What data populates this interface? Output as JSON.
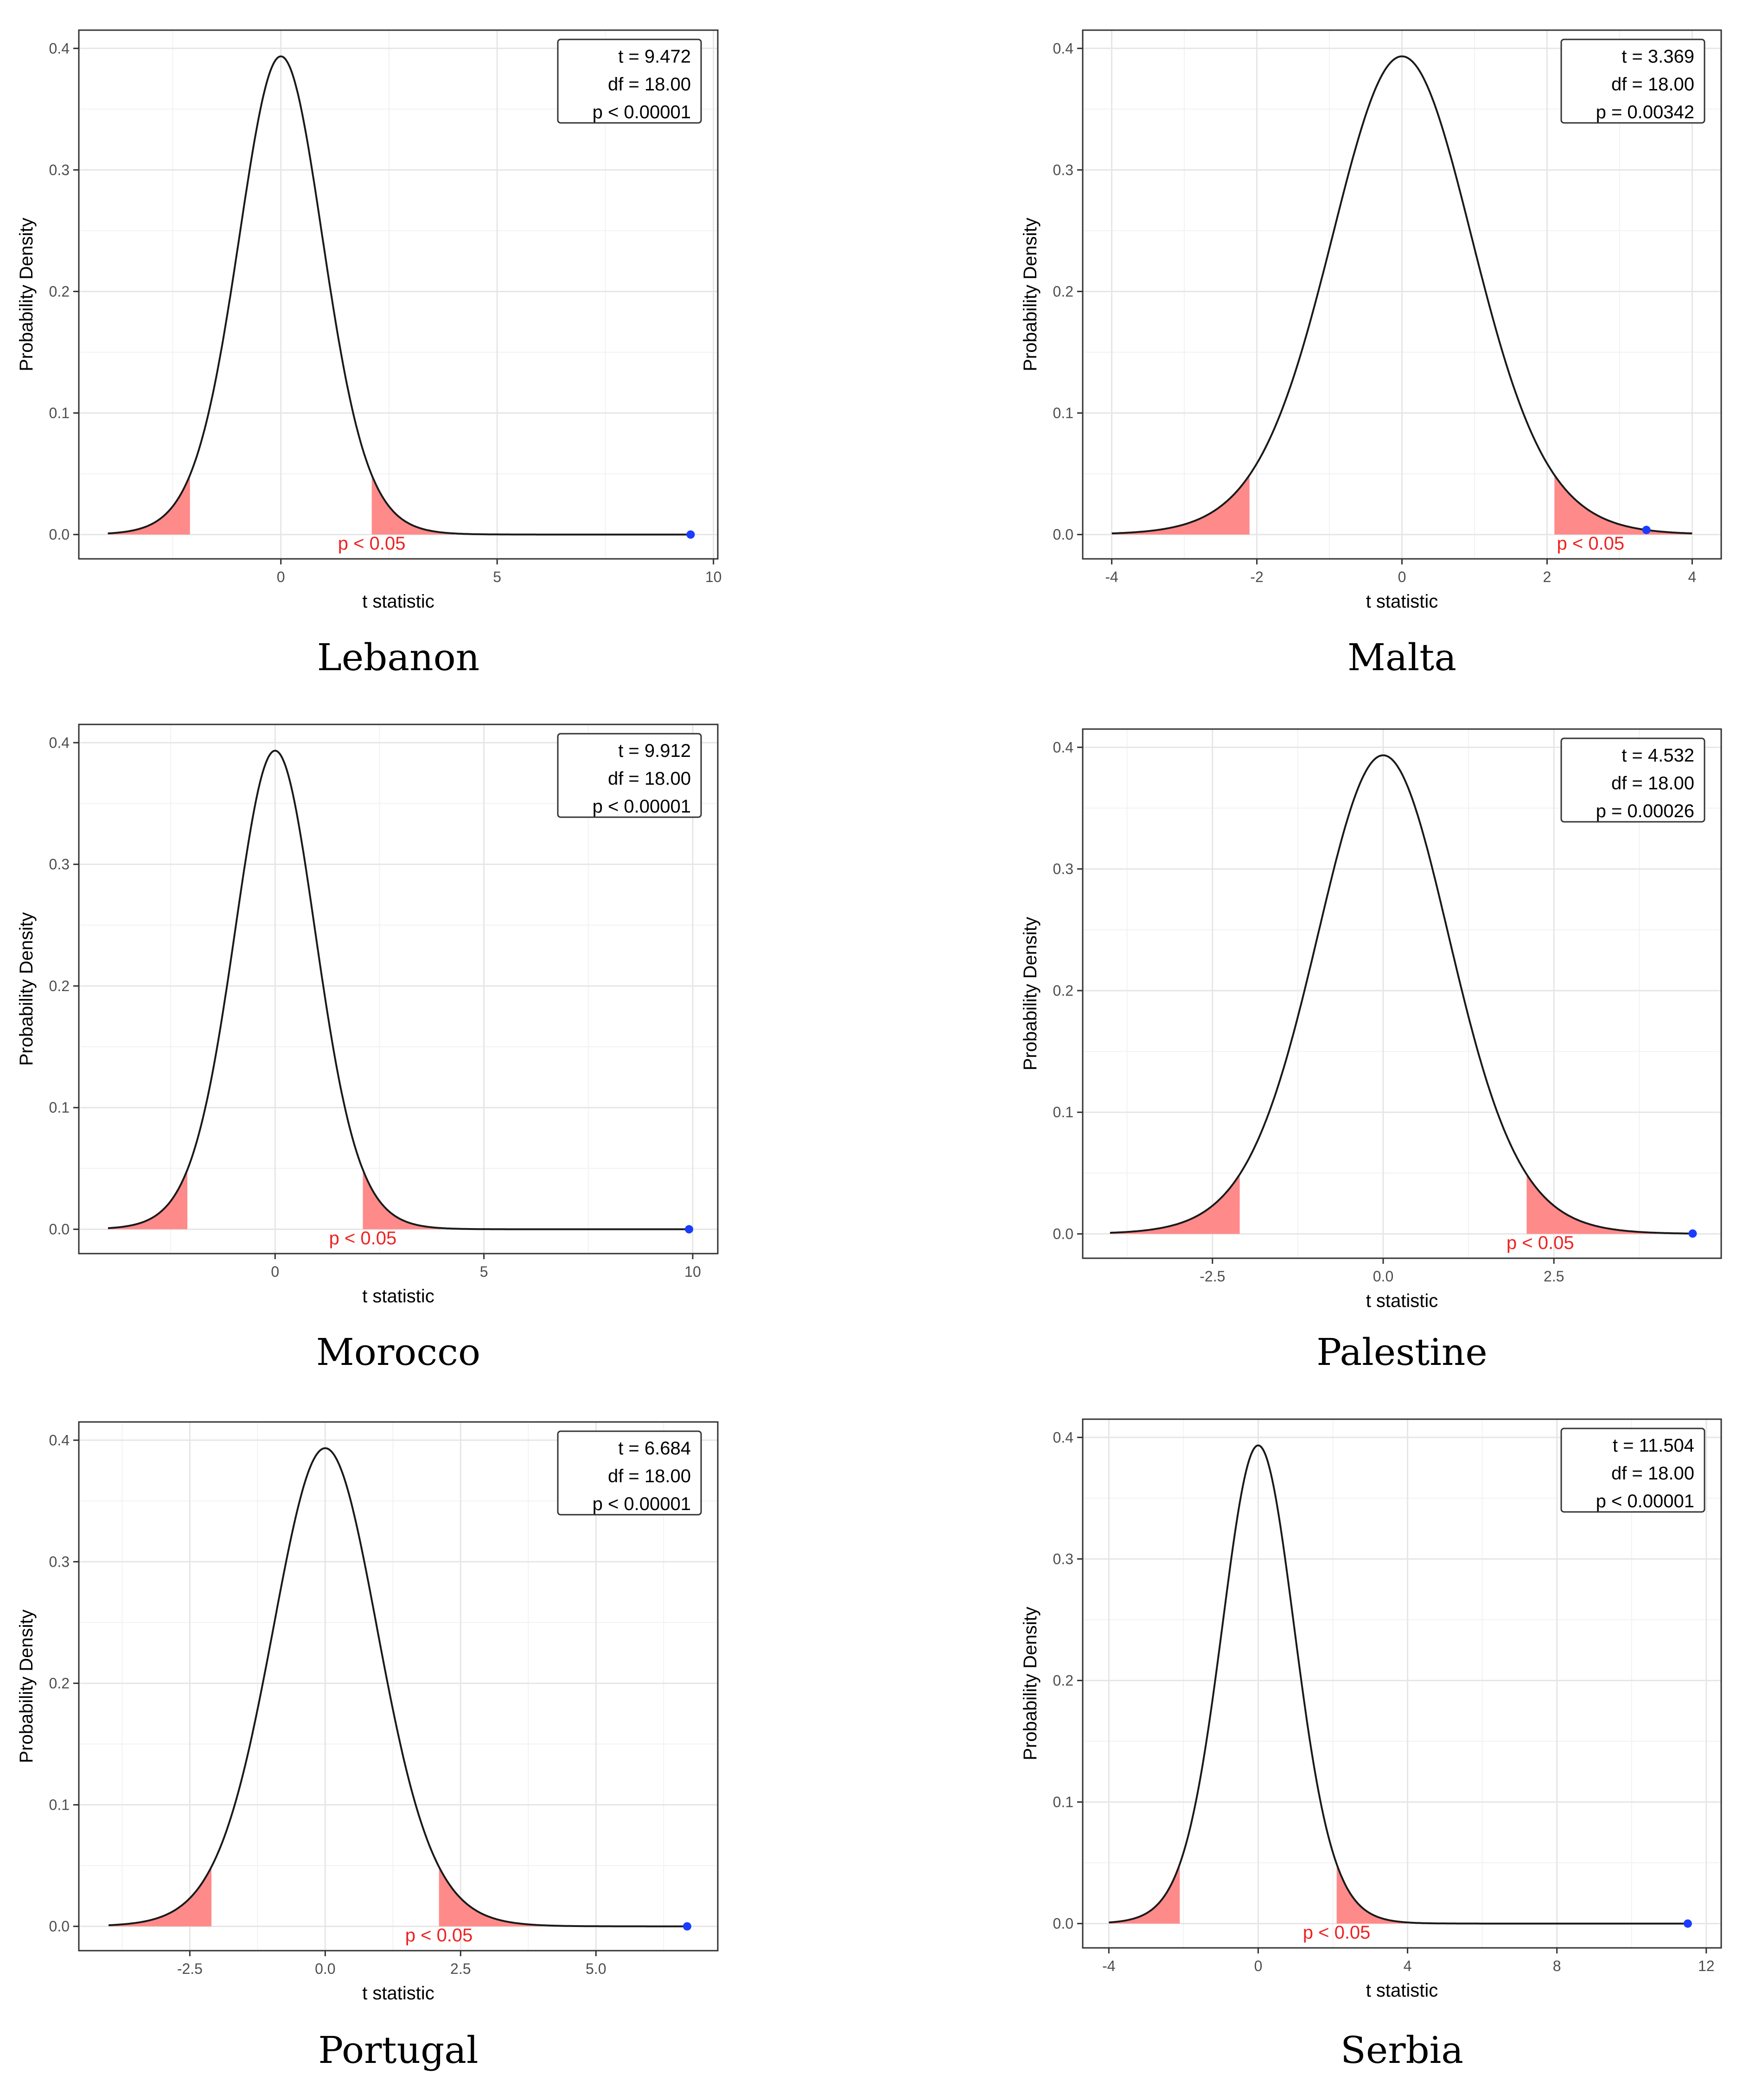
{
  "chart_data": [
    {
      "type": "line",
      "caption": "Lebanon",
      "xlabel": "t statistic",
      "ylabel": "Probability Density",
      "df": 18,
      "t_observed": 9.472,
      "critical_t": 2.101,
      "x_range": [
        -4,
        9.472
      ],
      "xlim": [
        -4.67,
        10.1
      ],
      "ylim": [
        -0.02,
        0.415
      ],
      "xticks": [
        0,
        5,
        10
      ],
      "xtick_labels": [
        "0",
        "5",
        "10"
      ],
      "yticks": [
        0,
        0.1,
        0.2,
        0.3,
        0.4
      ],
      "ytick_labels": [
        "0.0",
        "0.1",
        "0.2",
        "0.3",
        "0.4"
      ],
      "legend_lines": [
        "t = 9.472",
        "df = 18.00",
        "p < 0.00001"
      ],
      "region_label": "p < 0.05",
      "region_label_x": 2.1,
      "region_color": "#ff8a8a",
      "curve_color": "#1a1a1a",
      "point_color": "#1a3cff"
    },
    {
      "type": "line",
      "caption": "Malta",
      "xlabel": "t statistic",
      "ylabel": "Probability Density",
      "df": 18,
      "t_observed": 3.369,
      "critical_t": 2.101,
      "x_range": [
        -4,
        4
      ],
      "xlim": [
        -4.4,
        4.4
      ],
      "ylim": [
        -0.02,
        0.415
      ],
      "xticks": [
        -4,
        -2,
        0,
        2,
        4
      ],
      "xtick_labels": [
        "-4",
        "-2",
        "0",
        "2",
        "4"
      ],
      "yticks": [
        0,
        0.1,
        0.2,
        0.3,
        0.4
      ],
      "ytick_labels": [
        "0.0",
        "0.1",
        "0.2",
        "0.3",
        "0.4"
      ],
      "legend_lines": [
        "t = 3.369",
        "df = 18.00",
        "p = 0.00342"
      ],
      "region_label": "p < 0.05",
      "region_label_x": 2.6,
      "region_color": "#ff8a8a",
      "curve_color": "#1a1a1a",
      "point_color": "#1a3cff"
    },
    {
      "type": "line",
      "caption": "Morocco",
      "xlabel": "t statistic",
      "ylabel": "Probability Density",
      "df": 18,
      "t_observed": 9.912,
      "critical_t": 2.101,
      "x_range": [
        -4,
        9.912
      ],
      "xlim": [
        -4.7,
        10.6
      ],
      "ylim": [
        -0.02,
        0.415
      ],
      "xticks": [
        0,
        5,
        10
      ],
      "xtick_labels": [
        "0",
        "5",
        "10"
      ],
      "yticks": [
        0,
        0.1,
        0.2,
        0.3,
        0.4
      ],
      "ytick_labels": [
        "0.0",
        "0.1",
        "0.2",
        "0.3",
        "0.4"
      ],
      "legend_lines": [
        "t = 9.912",
        "df = 18.00",
        "p < 0.00001"
      ],
      "region_label": "p < 0.05",
      "region_label_x": 2.1,
      "region_color": "#ff8a8a",
      "curve_color": "#1a1a1a",
      "point_color": "#1a3cff"
    },
    {
      "type": "line",
      "caption": "Palestine",
      "xlabel": "t statistic",
      "ylabel": "Probability Density",
      "df": 18,
      "t_observed": 4.532,
      "critical_t": 2.101,
      "x_range": [
        -4,
        4.532
      ],
      "xlim": [
        -4.4,
        4.95
      ],
      "ylim": [
        -0.02,
        0.415
      ],
      "xticks": [
        -2.5,
        0,
        2.5
      ],
      "xtick_labels": [
        "-2.5",
        "0.0",
        "2.5"
      ],
      "yticks": [
        0,
        0.1,
        0.2,
        0.3,
        0.4
      ],
      "ytick_labels": [
        "0.0",
        "0.1",
        "0.2",
        "0.3",
        "0.4"
      ],
      "legend_lines": [
        "t = 4.532",
        "df = 18.00",
        "p = 0.00026"
      ],
      "region_label": "p < 0.05",
      "region_label_x": 2.3,
      "region_color": "#ff8a8a",
      "curve_color": "#1a1a1a",
      "point_color": "#1a3cff"
    },
    {
      "type": "line",
      "caption": "Portugal",
      "xlabel": "t statistic",
      "ylabel": "Probability Density",
      "df": 18,
      "t_observed": 6.684,
      "critical_t": 2.101,
      "x_range": [
        -4,
        6.684
      ],
      "xlim": [
        -4.55,
        7.25
      ],
      "ylim": [
        -0.02,
        0.415
      ],
      "xticks": [
        -2.5,
        0,
        2.5,
        5
      ],
      "xtick_labels": [
        "-2.5",
        "0.0",
        "2.5",
        "5.0"
      ],
      "yticks": [
        0,
        0.1,
        0.2,
        0.3,
        0.4
      ],
      "ytick_labels": [
        "0.0",
        "0.1",
        "0.2",
        "0.3",
        "0.4"
      ],
      "legend_lines": [
        "t = 6.684",
        "df = 18.00",
        "p < 0.00001"
      ],
      "region_label": "p < 0.05",
      "region_label_x": 2.1,
      "region_color": "#ff8a8a",
      "curve_color": "#1a1a1a",
      "point_color": "#1a3cff"
    },
    {
      "type": "line",
      "caption": "Serbia",
      "xlabel": "t statistic",
      "ylabel": "Probability Density",
      "df": 18,
      "t_observed": 11.504,
      "critical_t": 2.101,
      "x_range": [
        -4,
        11.504
      ],
      "xlim": [
        -4.7,
        12.4
      ],
      "ylim": [
        -0.02,
        0.415
      ],
      "xticks": [
        -4,
        0,
        4,
        8,
        12
      ],
      "xtick_labels": [
        "-4",
        "0",
        "4",
        "8",
        "12"
      ],
      "yticks": [
        0,
        0.1,
        0.2,
        0.3,
        0.4
      ],
      "ytick_labels": [
        "0.0",
        "0.1",
        "0.2",
        "0.3",
        "0.4"
      ],
      "legend_lines": [
        "t = 11.504",
        "df = 18.00",
        "p < 0.00001"
      ],
      "region_label": "p < 0.05",
      "region_label_x": 2.1,
      "region_color": "#ff8a8a",
      "curve_color": "#1a1a1a",
      "point_color": "#1a3cff"
    }
  ]
}
